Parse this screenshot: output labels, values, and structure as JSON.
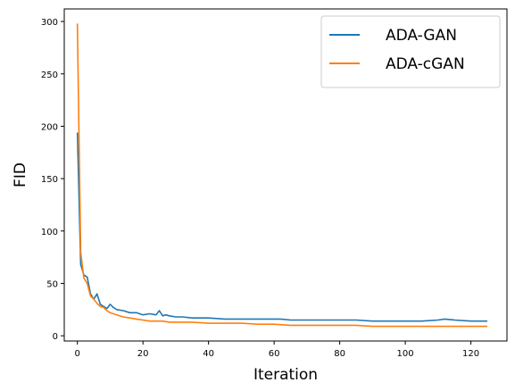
{
  "chart_data": {
    "type": "line",
    "xlabel": "Iteration",
    "ylabel": "FID",
    "xlim": [
      -4,
      131
    ],
    "ylim": [
      -5,
      312
    ],
    "xticks": [
      0,
      20,
      40,
      60,
      80,
      100,
      120
    ],
    "yticks": [
      0,
      50,
      100,
      150,
      200,
      250,
      300
    ],
    "grid": false,
    "legend_position": "top-right",
    "series": [
      {
        "name": "ADA-GAN",
        "color": "#1f77b4",
        "x": [
          0,
          1,
          2,
          3,
          4,
          5,
          6,
          7,
          8,
          9,
          10,
          11,
          12,
          14,
          16,
          18,
          20,
          22,
          24,
          25,
          26,
          27,
          28,
          30,
          32,
          35,
          40,
          45,
          50,
          55,
          60,
          62,
          65,
          70,
          75,
          80,
          85,
          90,
          95,
          100,
          105,
          110,
          112,
          115,
          120,
          125
        ],
        "values": [
          194,
          68,
          58,
          56,
          40,
          35,
          40,
          30,
          28,
          26,
          30,
          27,
          25,
          24,
          22,
          22,
          20,
          21,
          20,
          24,
          19,
          20,
          19,
          18,
          18,
          17,
          17,
          16,
          16,
          16,
          16,
          16,
          15,
          15,
          15,
          15,
          15,
          14,
          14,
          14,
          14,
          15,
          16,
          15,
          14,
          14
        ]
      },
      {
        "name": "ADA-cGAN",
        "color": "#ff7f0e",
        "x": [
          0,
          1,
          2,
          3,
          4,
          5,
          6,
          7,
          8,
          9,
          10,
          12,
          14,
          16,
          18,
          20,
          22,
          25,
          26,
          28,
          30,
          35,
          40,
          45,
          50,
          55,
          60,
          65,
          70,
          75,
          80,
          85,
          90,
          95,
          100,
          105,
          110,
          115,
          120,
          125
        ],
        "values": [
          298,
          80,
          55,
          50,
          38,
          35,
          31,
          28,
          27,
          24,
          22,
          20,
          18,
          17,
          16,
          15,
          14,
          14,
          14,
          13,
          13,
          13,
          12,
          12,
          12,
          11,
          11,
          10,
          10,
          10,
          10,
          10,
          9,
          9,
          9,
          9,
          9,
          9,
          9,
          9
        ]
      }
    ]
  }
}
